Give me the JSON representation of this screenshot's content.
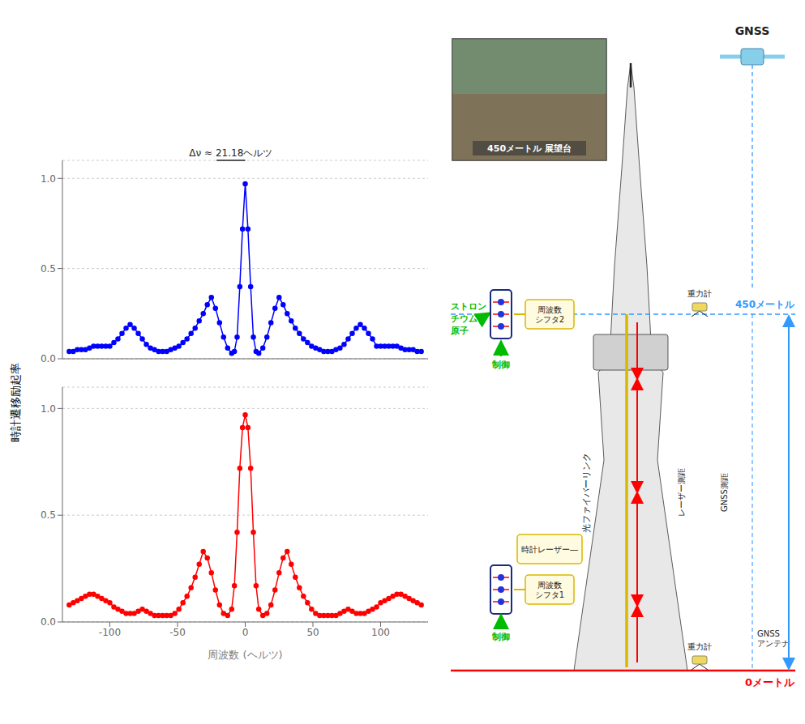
{
  "chart_data": [
    {
      "type": "line",
      "x": [
        -130,
        -127,
        -124,
        -121,
        -118,
        -115,
        -112,
        -109,
        -106,
        -103,
        -100,
        -97,
        -94,
        -91,
        -88,
        -85,
        -82,
        -79,
        -76,
        -73,
        -70,
        -67,
        -64,
        -61,
        -58,
        -55,
        -52,
        -49,
        -46,
        -43,
        -40,
        -37,
        -34,
        -31,
        -28,
        -25,
        -22,
        -19,
        -16,
        -13,
        -10,
        -8,
        -6,
        -4,
        -2,
        0,
        2,
        4,
        6,
        8,
        10,
        13,
        16,
        19,
        22,
        25,
        28,
        31,
        34,
        37,
        40,
        43,
        46,
        49,
        52,
        55,
        58,
        61,
        64,
        67,
        70,
        73,
        76,
        79,
        82,
        85,
        88,
        91,
        94,
        97,
        100,
        103,
        106,
        109,
        112,
        115,
        118,
        121,
        124,
        127,
        130
      ],
      "values": [
        0.04,
        0.04,
        0.05,
        0.05,
        0.05,
        0.06,
        0.07,
        0.07,
        0.07,
        0.07,
        0.07,
        0.09,
        0.11,
        0.14,
        0.17,
        0.19,
        0.17,
        0.14,
        0.11,
        0.08,
        0.06,
        0.05,
        0.04,
        0.04,
        0.04,
        0.05,
        0.06,
        0.07,
        0.09,
        0.11,
        0.14,
        0.17,
        0.21,
        0.25,
        0.3,
        0.34,
        0.28,
        0.2,
        0.12,
        0.06,
        0.03,
        0.04,
        0.12,
        0.4,
        0.72,
        0.97,
        0.72,
        0.4,
        0.12,
        0.04,
        0.03,
        0.06,
        0.12,
        0.2,
        0.28,
        0.34,
        0.3,
        0.25,
        0.21,
        0.17,
        0.14,
        0.11,
        0.09,
        0.07,
        0.06,
        0.05,
        0.04,
        0.04,
        0.04,
        0.05,
        0.06,
        0.08,
        0.11,
        0.14,
        0.17,
        0.19,
        0.17,
        0.14,
        0.11,
        0.07,
        0.07,
        0.07,
        0.07,
        0.07,
        0.07,
        0.06,
        0.05,
        0.05,
        0.05,
        0.04,
        0.04
      ],
      "color": "#0000FF",
      "marker": "circle",
      "line_style": "solid",
      "ylabel": "時計遷移励起率",
      "xlim": [
        -135,
        135
      ],
      "ylim": [
        0.0,
        1.1
      ],
      "yticks": [
        {
          "value": 0.0,
          "label": "0.0"
        },
        0.5,
        {
          "value": 1.0,
          "label": "1.0"
        }
      ],
      "grid": true,
      "tick_labels": "y",
      "annotations": [
        {
          "text": "Δν ≈ 21.18ヘルツ",
          "x_range": [
            -21.18,
            0
          ]
        }
      ]
    },
    {
      "type": "line",
      "x": [
        -130,
        -127,
        -124,
        -121,
        -118,
        -115,
        -112,
        -109,
        -106,
        -103,
        -100,
        -97,
        -94,
        -91,
        -88,
        -85,
        -82,
        -79,
        -76,
        -73,
        -70,
        -67,
        -64,
        -61,
        -58,
        -55,
        -52,
        -49,
        -46,
        -43,
        -40,
        -37,
        -34,
        -31,
        -28,
        -25,
        -22,
        -19,
        -16,
        -13,
        -10,
        -8,
        -6,
        -4,
        -2,
        0,
        2,
        4,
        6,
        8,
        10,
        13,
        16,
        19,
        22,
        25,
        28,
        31,
        34,
        37,
        40,
        43,
        46,
        49,
        52,
        55,
        58,
        61,
        64,
        67,
        70,
        73,
        76,
        79,
        82,
        85,
        88,
        91,
        94,
        97,
        100,
        103,
        106,
        109,
        112,
        115,
        118,
        121,
        124,
        127,
        130
      ],
      "values": [
        0.08,
        0.09,
        0.1,
        0.11,
        0.12,
        0.13,
        0.13,
        0.12,
        0.11,
        0.1,
        0.09,
        0.07,
        0.06,
        0.05,
        0.04,
        0.04,
        0.04,
        0.05,
        0.06,
        0.05,
        0.04,
        0.03,
        0.03,
        0.03,
        0.03,
        0.03,
        0.04,
        0.06,
        0.09,
        0.12,
        0.16,
        0.21,
        0.27,
        0.33,
        0.3,
        0.23,
        0.15,
        0.08,
        0.04,
        0.03,
        0.06,
        0.17,
        0.42,
        0.72,
        0.91,
        0.97,
        0.91,
        0.72,
        0.42,
        0.17,
        0.06,
        0.03,
        0.04,
        0.08,
        0.15,
        0.23,
        0.3,
        0.33,
        0.27,
        0.21,
        0.16,
        0.12,
        0.09,
        0.06,
        0.04,
        0.03,
        0.03,
        0.03,
        0.03,
        0.03,
        0.04,
        0.05,
        0.06,
        0.05,
        0.04,
        0.04,
        0.04,
        0.05,
        0.06,
        0.07,
        0.09,
        0.1,
        0.11,
        0.12,
        0.13,
        0.13,
        0.12,
        0.11,
        0.1,
        0.09,
        0.08
      ],
      "color": "#FF0000",
      "marker": "circle",
      "line_style": "solid",
      "xlabel": "周波数 (ヘルツ)",
      "xlim": [
        -135,
        135
      ],
      "ylim": [
        0.0,
        1.1
      ],
      "xticks": [
        -100,
        -50,
        0,
        50,
        100
      ],
      "yticks": [
        {
          "value": 0.0,
          "label": "0.0"
        },
        0.5,
        {
          "value": 1.0,
          "label": "1.0"
        }
      ],
      "grid": true
    }
  ],
  "annotations": [
    {
      "text": "450メートル",
      "color": "#3399FF"
    },
    {
      "text": "0メートル",
      "color": "#FF0000"
    },
    {
      "text": "ストロン\nチウム\n原子",
      "color": "#00BB00"
    },
    {
      "text": "制御",
      "color": "#00BB00"
    },
    {
      "text": "制御",
      "color": "#00BB00"
    },
    {
      "text": "周波数\nシフタ2"
    },
    {
      "text": "周波数\nシフタ1"
    },
    {
      "text": "時計レーザー―"
    },
    {
      "text": "光ファイバーリンク"
    },
    {
      "text": "レーザー測距"
    },
    {
      "text": "GNSS測距"
    },
    {
      "text": "重力計"
    },
    {
      "text": "重力計"
    },
    {
      "text": "GNSS\nアンテナ"
    },
    {
      "text": "GNSS"
    },
    {
      "text": "450メートル 展望台"
    }
  ]
}
